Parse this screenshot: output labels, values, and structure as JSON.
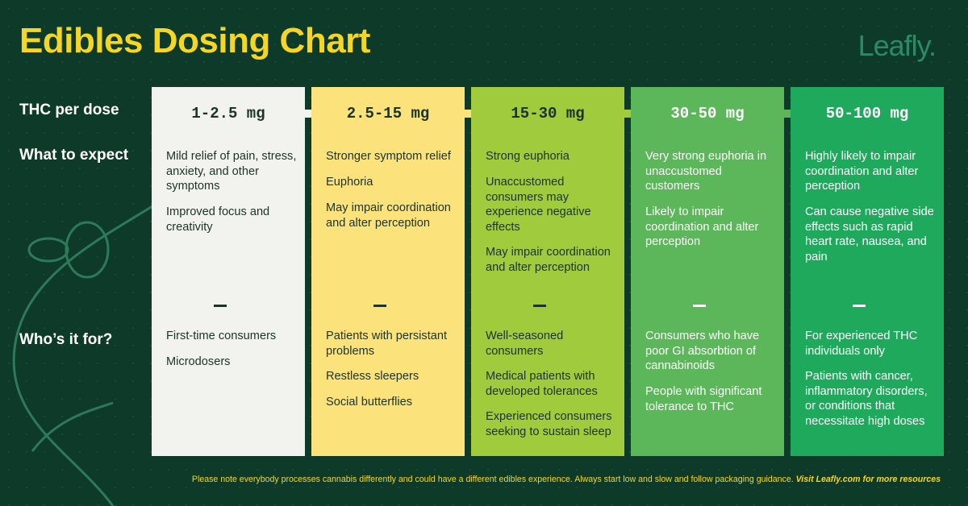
{
  "header": {
    "title": "Edibles Dosing Chart",
    "brand": "Leafly."
  },
  "row_labels": [
    "THC per dose",
    "What to expect",
    "Who’s it for?"
  ],
  "columns": [
    {
      "dose": "1-2.5 mg",
      "expect": [
        "Mild relief of pain, stress, anxiety, and other symptoms",
        "Improved focus and creativity"
      ],
      "for": [
        "First-time consumers",
        "Microdosers"
      ]
    },
    {
      "dose": "2.5-15 mg",
      "expect": [
        "Stronger symptom relief",
        "Euphoria",
        "May impair coordination and alter perception"
      ],
      "for": [
        "Patients with persistant problems",
        "Restless sleepers",
        "Social butterflies"
      ]
    },
    {
      "dose": "15-30 mg",
      "expect": [
        "Strong euphoria",
        "Unaccustomed consumers may experience negative effects",
        "May impair coordination and alter perception"
      ],
      "for": [
        "Well-seasoned consumers",
        "Medical patients with developed tolerances",
        "Experienced consumers seeking to sustain sleep"
      ]
    },
    {
      "dose": "30-50 mg",
      "expect": [
        "Very strong euphoria in unaccustomed customers",
        "Likely to impair coordination and alter perception"
      ],
      "for": [
        "Consumers who have poor GI absorbtion of cannabinoids",
        "People with significant tolerance to THC"
      ]
    },
    {
      "dose": "50-100 mg",
      "expect": [
        "Highly likely to impair coordination and alter perception",
        "Can cause negative side effects such as rapid heart rate, nausea, and pain"
      ],
      "for": [
        "For experienced THC individuals only",
        "Patients with cancer, inflammatory disorders, or conditions that necessitate high doses"
      ]
    }
  ],
  "footer": {
    "note": "Please note everybody processes cannabis differently and could have a different edibles experience. Always start low and slow and follow packaging guidance.",
    "link": "Visit Leafly.com for more resources"
  }
}
